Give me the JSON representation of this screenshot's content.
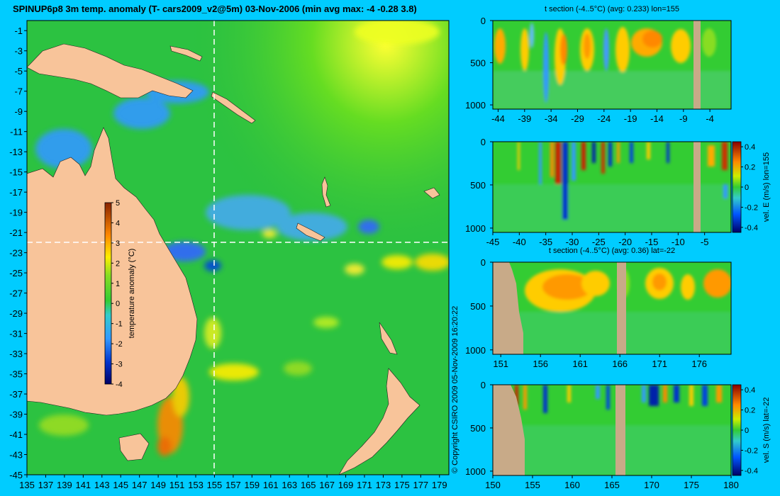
{
  "figure": {
    "title": "SPINUP6p8 3m temp. anomaly (T- cars2009_v2@5m) 03-Nov-2006 (min avg max: -4 -0.28 3.8)",
    "copyright": "© Copyright CSIRO 2009   05-Nov-2009 16:20:22"
  },
  "colors": {
    "background": "#00ccff",
    "land": "#f8c49a",
    "panel_land": "#c8aa88",
    "ocean_mid": "#33cc33",
    "warm": "#ff9900",
    "hot": "#cc2200",
    "cool": "#3399ff",
    "cold": "#0022aa"
  },
  "chart_data": [
    {
      "type": "heatmap",
      "title": "SPINUP6p8 3m temp. anomaly (T- cars2009_v2@5m) 03-Nov-2006 (min avg max: -4 -0.28 3.8)",
      "xlim": [
        135,
        180
      ],
      "ylim": [
        -45,
        0
      ],
      "x_ticks": [
        135,
        137,
        139,
        141,
        143,
        145,
        147,
        149,
        151,
        153,
        155,
        157,
        159,
        161,
        163,
        165,
        167,
        169,
        171,
        173,
        175,
        177,
        179
      ],
      "y_ticks": [
        -1,
        -3,
        -5,
        -7,
        -9,
        -11,
        -13,
        -15,
        -17,
        -19,
        -21,
        -23,
        -25,
        -27,
        -29,
        -31,
        -33,
        -35,
        -37,
        -39,
        -41,
        -43,
        -45
      ],
      "crosshair": {
        "lon": 155,
        "lat": -22
      },
      "colorbar": {
        "label": "temperature anomaly (°C)",
        "range": [
          -4,
          5
        ],
        "ticks": [
          5,
          4,
          3,
          2,
          1,
          0,
          -1,
          -2,
          -3,
          -4
        ]
      },
      "stats": {
        "min": -4,
        "avg": -0.28,
        "max": 3.8
      }
    },
    {
      "type": "heatmap",
      "title": "t section (-4..5°C) (avg: 0.233) lon=155",
      "x_ticks": [
        -44,
        -39,
        -34,
        -29,
        -24,
        -19,
        -14,
        -9,
        -4
      ],
      "xlim": [
        -45,
        0
      ],
      "y_ticks": [
        0,
        500,
        1000
      ],
      "ylim": [
        1050,
        0
      ]
    },
    {
      "type": "heatmap",
      "title": "",
      "x_ticks": [
        -45,
        -40,
        -35,
        -30,
        -25,
        -20,
        -15,
        -10,
        -5
      ],
      "xlim": [
        -45,
        0
      ],
      "y_ticks": [
        0,
        500,
        1000
      ],
      "ylim": [
        1050,
        0
      ],
      "colorbar": {
        "label": "vel. E (m/s) lon=155",
        "range": [
          -0.45,
          0.45
        ],
        "ticks": [
          "0.4",
          "0.2",
          "0",
          "-0.2",
          "-0.4"
        ]
      }
    },
    {
      "type": "heatmap",
      "title": "t section (-4..5°C) (avg: 0.36) lat=-22",
      "x_ticks": [
        151,
        156,
        161,
        166,
        171,
        176
      ],
      "xlim": [
        150,
        180
      ],
      "y_ticks": [
        0,
        500,
        1000
      ],
      "ylim": [
        1050,
        0
      ]
    },
    {
      "type": "heatmap",
      "title": "",
      "x_ticks": [
        150,
        155,
        160,
        165,
        170,
        175,
        180
      ],
      "xlim": [
        150,
        180
      ],
      "y_ticks": [
        0,
        500,
        1000
      ],
      "ylim": [
        1050,
        0
      ],
      "colorbar": {
        "label": "vel. S (m/s) lat=-22",
        "range": [
          -0.45,
          0.45
        ],
        "ticks": [
          "0.4",
          "0.2",
          "0",
          "-0.2",
          "-0.4"
        ]
      }
    }
  ]
}
